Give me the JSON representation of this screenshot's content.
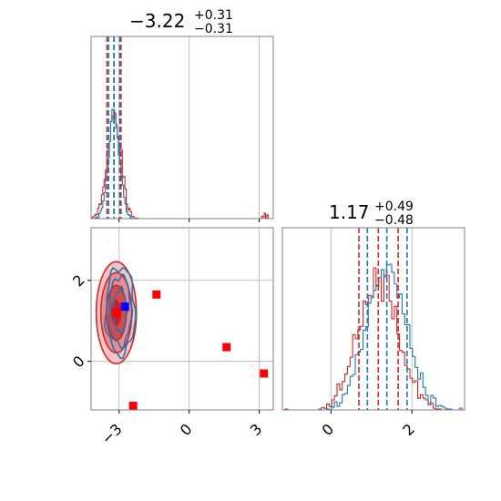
{
  "chart_data": {
    "type": "corner",
    "parameters": [
      {
        "title": {
          "median": "−3.22",
          "plus": "+0.31",
          "minus": "−0.31"
        },
        "range": [
          -4.2,
          3.6
        ],
        "ticks": [
          {
            "value": -3,
            "label": "−3"
          },
          {
            "value": 0,
            "label": "0"
          },
          {
            "value": 3,
            "label": "3"
          }
        ],
        "quantiles": {
          "red": [
            -3.52,
            -3.22,
            -2.92
          ],
          "blue": [
            -3.45,
            -3.22,
            -2.98
          ]
        }
      },
      {
        "title": {
          "median": "1.17",
          "plus": "+0.49",
          "minus": "−0.48"
        },
        "range": [
          -1.2,
          3.3
        ],
        "ticks": [
          {
            "value": 0,
            "label": "0"
          },
          {
            "value": 2,
            "label": "2"
          }
        ],
        "quantiles": {
          "red": [
            0.69,
            1.17,
            1.66
          ],
          "blue": [
            0.9,
            1.38,
            1.88
          ]
        }
      }
    ],
    "series": [
      {
        "color": "#d62728"
      },
      {
        "color": "#1f77b4"
      }
    ],
    "scatter_points_red": [
      {
        "x": -1.4,
        "y": 1.65
      },
      {
        "x": 1.6,
        "y": 0.35
      },
      {
        "x": 3.2,
        "y": -0.3
      },
      {
        "x": -2.4,
        "y": -1.1
      },
      {
        "x": -3.1,
        "y": 1.2
      }
    ],
    "scatter_points_blue": [
      {
        "x": -2.75,
        "y": 1.35
      }
    ],
    "grid": true
  }
}
